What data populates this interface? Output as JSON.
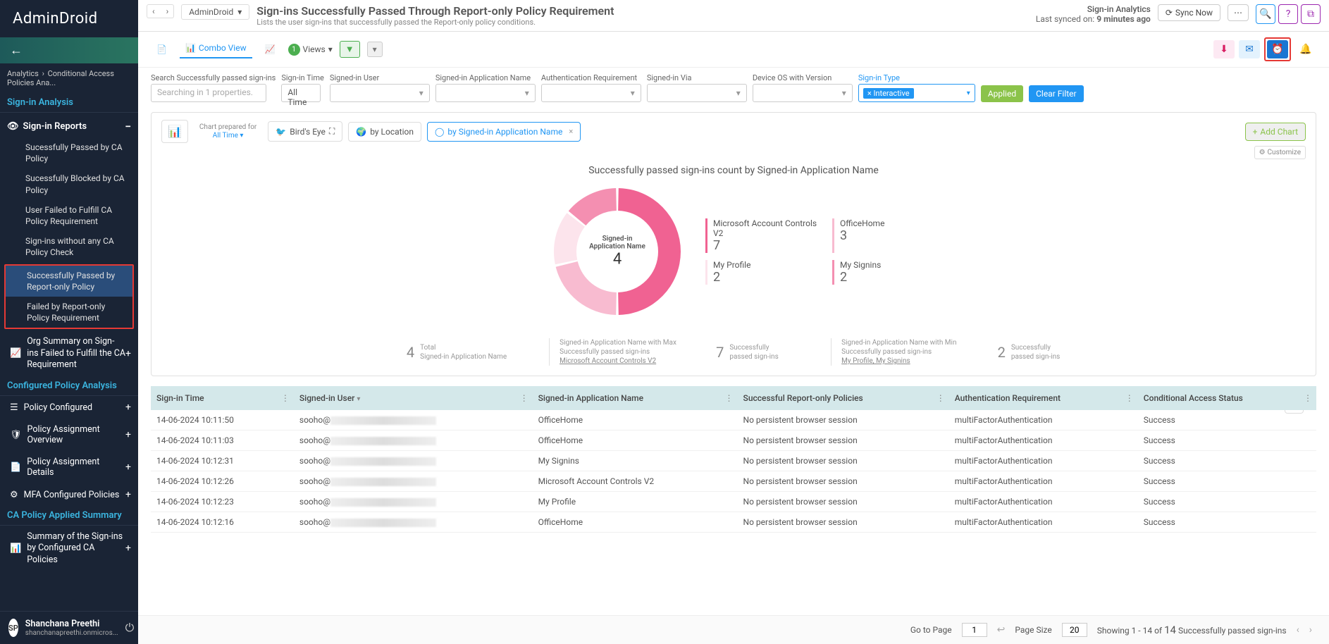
{
  "brand": "AdminDroid",
  "breadcrumb": {
    "a": "Analytics",
    "b": "Conditional Access Policies Ana..."
  },
  "sidebar": {
    "section1": "Sign-in Analysis",
    "group1": "Sign-in Reports",
    "items": [
      "Sucessfully Passed by CA Policy",
      "Sucessfully Blocked by CA Policy",
      "User Failed to Fulfill CA Policy Requirement",
      "Sign-ins without any CA Policy Check",
      "Successfully Passed by Report-only Policy",
      "Failed by Report-only Policy Requirement",
      "Org Summary on Sign-ins Failed to Fulfill the CA Requirement"
    ],
    "section2": "Configured Policy Analysis",
    "rows2": [
      "Policy Configured",
      "Policy Assignment Overview",
      "Policy Assignment Details",
      "MFA Configured Policies"
    ],
    "section3": "CA Policy Applied Summary",
    "rows3": [
      "Summary of the Sign-ins by Configured CA Policies"
    ]
  },
  "user": {
    "initials": "SP",
    "name": "Shanchana Preethi",
    "email": "shanchanapreethi.onmicros..."
  },
  "topbar": {
    "crumb": "AdminDroid",
    "title": "Sign-ins Successfully Passed Through Report-only Policy Requirement",
    "subtitle": "Lists the user sign-ins that successfully passed the Report-only policy conditions.",
    "sync_label": "Sign-in Analytics",
    "sync_text": "Last synced on:",
    "sync_ago": "9 minutes ago",
    "sync_btn": "Sync Now"
  },
  "toolbar": {
    "combo": "Combo View",
    "views": "Views",
    "views_count": "1"
  },
  "filters": {
    "search_label": "Search Successfully passed sign-ins",
    "search_placeholder": "Searching in 1 properties.",
    "time_label": "Sign-in Time",
    "time_value": "All Time",
    "user_label": "Signed-in User",
    "app_label": "Signed-in Application Name",
    "auth_label": "Authentication Requirement",
    "via_label": "Signed-in Via",
    "os_label": "Device OS with Version",
    "type_label": "Sign-in Type",
    "type_chip": "Interactive",
    "applied": "Applied",
    "clear": "Clear Filter"
  },
  "chart": {
    "prep_label": "Chart prepared for",
    "prep_time": "All Time",
    "tab_birds": "Bird's Eye",
    "tab_loc": "by Location",
    "tab_app": "by Signed-in Application Name",
    "add_chart": "Add Chart",
    "customize": "Customize",
    "title": "Successfully passed sign-ins count by Signed-in Application Name",
    "center_label": "Signed-in Application Name",
    "center_value": "4",
    "donut": {
      "type": "donut",
      "background": "#ffffff",
      "ring_width": 32,
      "slices": [
        {
          "label": "Microsoft Account Controls V2",
          "value": 7,
          "color": "#f06292"
        },
        {
          "label": "OfficeHome",
          "value": 3,
          "color": "#f8bbd0"
        },
        {
          "label": "My Profile",
          "value": 2,
          "color": "#fce4ec"
        },
        {
          "label": "My Signins",
          "value": 2,
          "color": "#f48fb1"
        }
      ]
    },
    "legend_colors": [
      "#f06292",
      "#f8bbd0",
      "#fce4ec",
      "#f48fb1"
    ],
    "legend": [
      {
        "name": "Microsoft Account Controls V2",
        "count": "7"
      },
      {
        "name": "OfficeHome",
        "count": "3"
      },
      {
        "name": "My Profile",
        "count": "2"
      },
      {
        "name": "My Signins",
        "count": "2"
      }
    ],
    "stats": {
      "total_n": "4",
      "total_l1": "Total",
      "total_l2": "Signed-in Application Name",
      "max_l1": "Signed-in Application Name with Max Successfully passed sign-ins",
      "max_link": "Microsoft Account Controls V2",
      "max_n": "7",
      "max_r": "Successfully passed sign-ins",
      "min_l1": "Signed-in Application Name with Min Successfully passed sign-ins",
      "min_link": "My Profile, My Signins",
      "min_n": "2",
      "min_r": "Successfully passed sign-ins"
    }
  },
  "table": {
    "columns": [
      "Sign-in Time",
      "Signed-in User",
      "Signed-in Application Name",
      "Successful Report-only Policies",
      "Authentication Requirement",
      "Conditional Access Status"
    ],
    "rows": [
      [
        "14-06-2024 10:11:50",
        "sooho@",
        "OfficeHome",
        "No persistent browser session",
        "multiFactorAuthentication",
        "Success"
      ],
      [
        "14-06-2024 10:11:03",
        "sooho@",
        "OfficeHome",
        "No persistent browser session",
        "multiFactorAuthentication",
        "Success"
      ],
      [
        "14-06-2024 10:12:31",
        "sooho@",
        "My Signins",
        "No persistent browser session",
        "multiFactorAuthentication",
        "Success"
      ],
      [
        "14-06-2024 10:12:26",
        "sooho@",
        "Microsoft Account Controls V2",
        "No persistent browser session",
        "multiFactorAuthentication",
        "Success"
      ],
      [
        "14-06-2024 10:12:23",
        "sooho@",
        "My Profile",
        "No persistent browser session",
        "multiFactorAuthentication",
        "Success"
      ],
      [
        "14-06-2024 10:12:16",
        "sooho@",
        "OfficeHome",
        "No persistent browser session",
        "multiFactorAuthentication",
        "Success"
      ]
    ]
  },
  "pagination": {
    "goto_label": "Go to Page",
    "goto_value": "1",
    "size_label": "Page Size",
    "size_value": "20",
    "showing_prefix": "Showing 1 - 14 of",
    "total": "14",
    "showing_suffix": "Successfully passed sign-ins"
  }
}
